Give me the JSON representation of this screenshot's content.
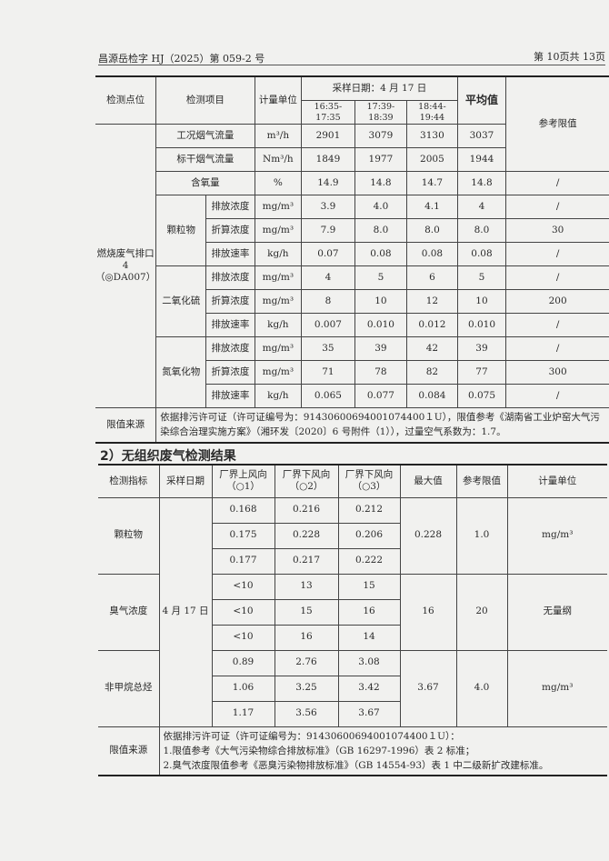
{
  "header": {
    "report_no": "昌源岳检字 HJ（2025）第 059-2 号",
    "page": "第 10页共 13页"
  },
  "table1": {
    "headers": {
      "point": "检测点位",
      "item": "检测项目",
      "unit": "计量单位",
      "date": "采样日期：4 月 17 日",
      "times": [
        "16:35-17:35",
        "17:39-18:39",
        "18:44-19:44"
      ],
      "avg": "平均值",
      "limit": "参考限值"
    },
    "point": "燃烧废气排口 4（◎DA007）",
    "flow_rows": [
      {
        "item": "工况烟气流量",
        "unit": "m³/h",
        "v": [
          "2901",
          "3079",
          "3130"
        ],
        "avg": "3037"
      },
      {
        "item": "标干烟气流量",
        "unit": "Nm³/h",
        "v": [
          "1849",
          "1977",
          "2005"
        ],
        "avg": "1944"
      }
    ],
    "flow_limit": "",
    "oxygen": {
      "item": "含氧量",
      "unit": "%",
      "v": [
        "14.9",
        "14.8",
        "14.7"
      ],
      "avg": "14.8",
      "limit": "/"
    },
    "groups": [
      {
        "name": "颗粒物",
        "rows": [
          {
            "sub": "排放浓度",
            "unit": "mg/m³",
            "v": [
              "3.9",
              "4.0",
              "4.1"
            ],
            "avg": "4",
            "limit": "/"
          },
          {
            "sub": "折算浓度",
            "unit": "mg/m³",
            "v": [
              "7.9",
              "8.0",
              "8.0"
            ],
            "avg": "8.0",
            "limit": "30"
          },
          {
            "sub": "排放速率",
            "unit": "kg/h",
            "v": [
              "0.07",
              "0.08",
              "0.08"
            ],
            "avg": "0.08",
            "limit": "/"
          }
        ]
      },
      {
        "name": "二氧化硫",
        "rows": [
          {
            "sub": "排放浓度",
            "unit": "mg/m³",
            "v": [
              "4",
              "5",
              "6"
            ],
            "avg": "5",
            "limit": "/"
          },
          {
            "sub": "折算浓度",
            "unit": "mg/m³",
            "v": [
              "8",
              "10",
              "12"
            ],
            "avg": "10",
            "limit": "200"
          },
          {
            "sub": "排放速率",
            "unit": "kg/h",
            "v": [
              "0.007",
              "0.010",
              "0.012"
            ],
            "avg": "0.010",
            "limit": "/"
          }
        ]
      },
      {
        "name": "氮氧化物",
        "rows": [
          {
            "sub": "排放浓度",
            "unit": "mg/m³",
            "v": [
              "35",
              "39",
              "42"
            ],
            "avg": "39",
            "limit": "/"
          },
          {
            "sub": "折算浓度",
            "unit": "mg/m³",
            "v": [
              "71",
              "78",
              "82"
            ],
            "avg": "77",
            "limit": "300"
          },
          {
            "sub": "排放速率",
            "unit": "kg/h",
            "v": [
              "0.065",
              "0.077",
              "0.084"
            ],
            "avg": "0.075",
            "limit": "/"
          }
        ]
      }
    ],
    "source_label": "限值来源",
    "source_text": "依据排污许可证（许可证编号为：91430600694001074400１U），限值参考《湖南省工业炉窑大气污染综合治理实施方案》（湘环发〔2020〕6 号附件（1）），过量空气系数为：1.7。"
  },
  "section2_title": "2）无组织废气检测结果",
  "table2": {
    "headers": [
      "检测指标",
      "采样日期",
      "厂界上风向（○1）",
      "厂界下风向（○2）",
      "厂界下风向（○3）",
      "最大值",
      "参考限值",
      "计量单位"
    ],
    "date": "4 月 17 日",
    "groups": [
      {
        "name": "颗粒物",
        "rows": [
          [
            "0.168",
            "0.216",
            "0.212"
          ],
          [
            "0.175",
            "0.228",
            "0.206"
          ],
          [
            "0.177",
            "0.217",
            "0.222"
          ]
        ],
        "max": "0.228",
        "limit": "1.0",
        "unit": "mg/m³"
      },
      {
        "name": "臭气浓度",
        "rows": [
          [
            "<10",
            "13",
            "15"
          ],
          [
            "<10",
            "15",
            "16"
          ],
          [
            "<10",
            "16",
            "14"
          ]
        ],
        "max": "16",
        "limit": "20",
        "unit": "无量纲"
      },
      {
        "name": "非甲烷总烃",
        "rows": [
          [
            "0.89",
            "2.76",
            "3.08"
          ],
          [
            "1.06",
            "3.25",
            "3.42"
          ],
          [
            "1.17",
            "3.56",
            "3.67"
          ]
        ],
        "max": "3.67",
        "limit": "4.0",
        "unit": "mg/m³"
      }
    ],
    "source_label": "限值来源",
    "source_lines": [
      "依据排污许可证（许可证编号为：91430600694001074400１U）：",
      "1.限值参考《大气污染物综合排放标准》（GB 16297-1996）表 2 标准；",
      "2.臭气浓度限值参考《恶臭污染物排放标准》（GB 14554-93）表 1 中二级新扩改建标准。"
    ]
  }
}
